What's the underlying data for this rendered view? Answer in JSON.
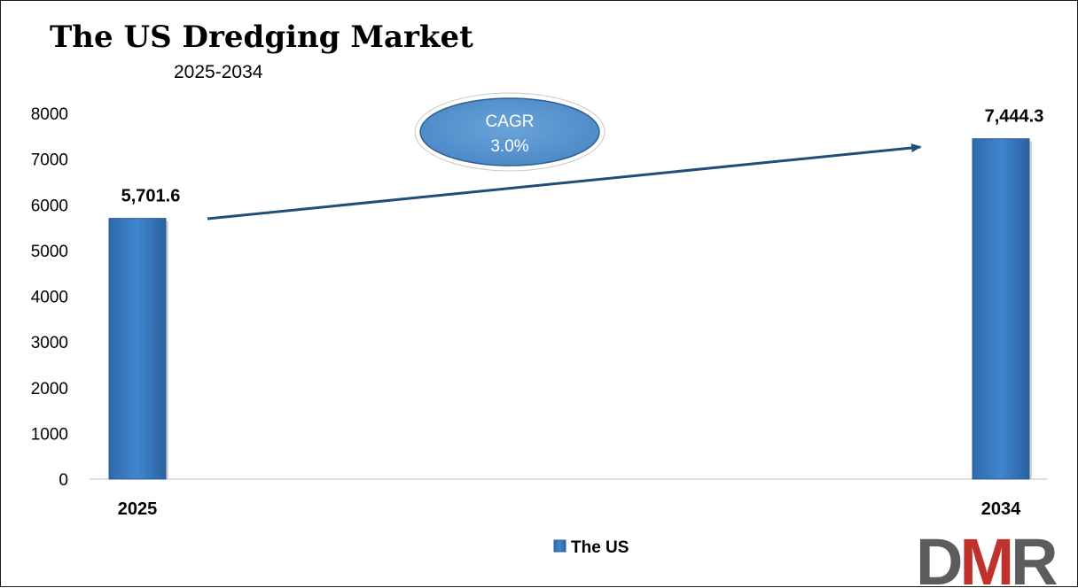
{
  "chart_data": {
    "type": "bar",
    "title": "The US Dredging Market",
    "subtitle": "2025-2034",
    "categories": [
      "2025",
      "2034"
    ],
    "series": [
      {
        "name": "The US",
        "values": [
          5701.6,
          7444.3
        ],
        "data_labels": [
          "5,701.6",
          "7,444.3"
        ],
        "color": "#3a7dc4"
      }
    ],
    "ylim": [
      0,
      8000
    ],
    "yticks": [
      0,
      1000,
      2000,
      3000,
      4000,
      5000,
      6000,
      7000,
      8000
    ],
    "grid": false,
    "legend_position": "bottom",
    "annotation": {
      "line1": "CAGR",
      "line2": "3.0%"
    }
  },
  "logo": {
    "text": "DMR",
    "colors": [
      "#5c5c5c",
      "#c0312b",
      "#5c5c5c"
    ]
  }
}
